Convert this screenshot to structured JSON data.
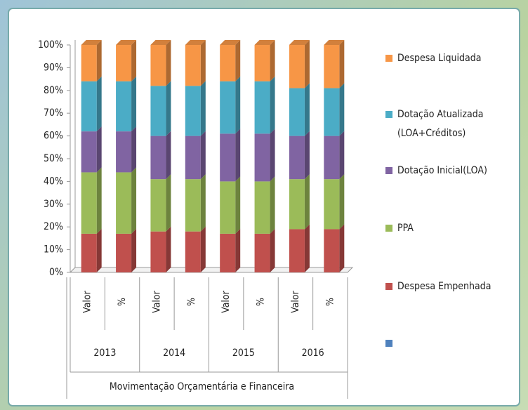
{
  "chart_data": {
    "type": "bar",
    "stacked": true,
    "categories": [
      "Valor",
      "%",
      "Valor",
      "%",
      "Valor",
      "%",
      "Valor",
      "%"
    ],
    "groups": [
      "2013",
      "2014",
      "2015",
      "2016"
    ],
    "x_label": "Movimentação Orçamentária e Financeira",
    "series": [
      {
        "name": "Despesa Empenhada",
        "color": "#c0504d",
        "values": [
          17,
          17,
          18,
          18,
          17,
          17,
          19,
          19
        ]
      },
      {
        "name": "PPA",
        "color": "#9bbb59",
        "values": [
          27,
          27,
          23,
          23,
          23,
          23,
          22,
          22
        ]
      },
      {
        "name": "Dotação Inicial(LOA)",
        "color": "#8064a2",
        "values": [
          18,
          18,
          19,
          19,
          21,
          21,
          19,
          19
        ]
      },
      {
        "name": "Dotação Atualizada (LOA+Créditos)",
        "color": "#4bacc6",
        "values": [
          22,
          22,
          22,
          22,
          23,
          23,
          21,
          21
        ]
      },
      {
        "name": "Despesa Liquidada",
        "color": "#f79646",
        "values": [
          16,
          16,
          18,
          18,
          16,
          16,
          19,
          19
        ]
      }
    ],
    "ylim": [
      0,
      100
    ],
    "yticks": [
      {
        "value": 0,
        "label": "0%"
      },
      {
        "value": 10,
        "label": "10%"
      },
      {
        "value": 20,
        "label": "20%"
      },
      {
        "value": 30,
        "label": "30%"
      },
      {
        "value": 40,
        "label": "40%"
      },
      {
        "value": 50,
        "label": "50%"
      },
      {
        "value": 60,
        "label": "60%"
      },
      {
        "value": 70,
        "label": "70%"
      },
      {
        "value": 80,
        "label": "80%"
      },
      {
        "value": 90,
        "label": "90%"
      },
      {
        "value": 100,
        "label": "100%"
      }
    ],
    "legend": "right"
  }
}
